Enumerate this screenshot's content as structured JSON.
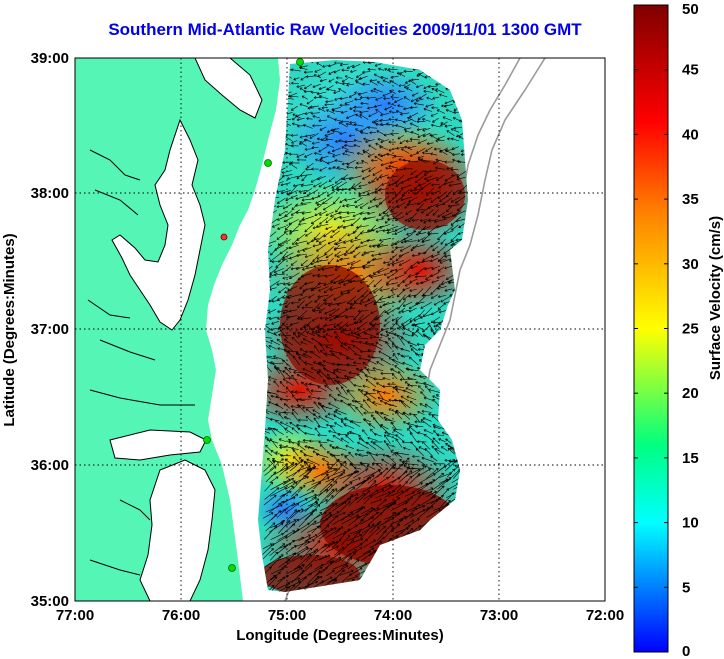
{
  "title": "Southern Mid-Atlantic Raw Velocities 2009/11/01 1300 GMT",
  "axes": {
    "xlabel": "Longitude (Degrees:Minutes)",
    "ylabel": "Latitude (Degrees:Minutes)",
    "x_ticks": [
      "77:00",
      "76:00",
      "75:00",
      "74:00",
      "73:00",
      "72:00"
    ],
    "y_ticks": [
      "39:00",
      "38:00",
      "37:00",
      "36:00",
      "35:00"
    ]
  },
  "colorbar": {
    "label": "Surface Velocity (cm/s)",
    "ticks": [
      "0",
      "5",
      "10",
      "15",
      "20",
      "25",
      "30",
      "35",
      "40",
      "45",
      "50"
    ],
    "range": [
      0,
      50
    ],
    "colors": [
      "#0000ff",
      "#00ffff",
      "#00ff80",
      "#ffff00",
      "#ff8000",
      "#ff0000",
      "#800000"
    ]
  },
  "colors": {
    "land": "#55f5b5",
    "coastline": "#000000",
    "bathymetry": "#9a9a9a",
    "station_marker": "#00dd00",
    "title": "#0000ee"
  }
}
